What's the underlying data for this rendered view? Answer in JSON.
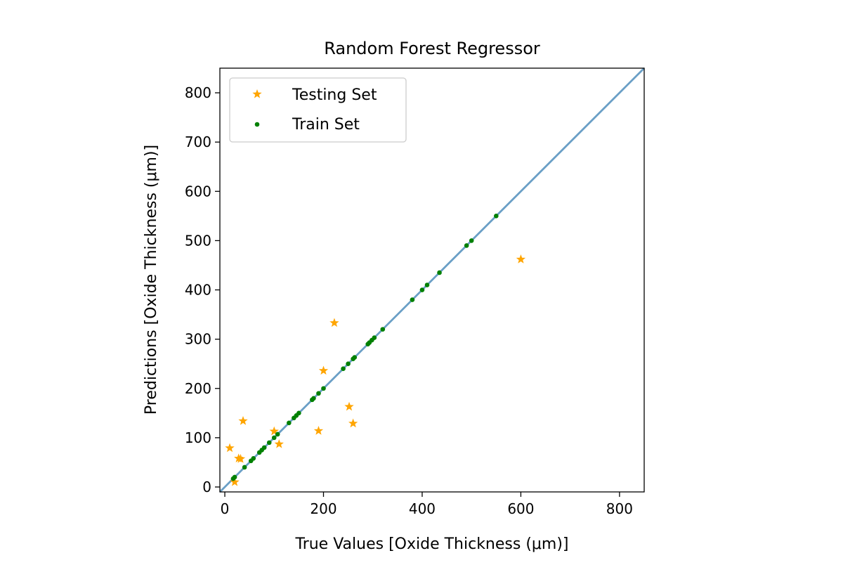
{
  "chart_data": {
    "type": "scatter",
    "title": "Random Forest Regressor",
    "xlabel": "True Values [Oxide Thickness (μm)]",
    "ylabel": "Predictions [Oxide Thickness (μm)]",
    "xlim": [
      -10,
      850
    ],
    "ylim": [
      -10,
      850
    ],
    "xticks": [
      0,
      200,
      400,
      600,
      800
    ],
    "yticks": [
      0,
      100,
      200,
      300,
      400,
      500,
      600,
      700,
      800
    ],
    "legend_position": "top-left",
    "identity_line": {
      "color": "#6a9fc6",
      "from": -10,
      "to": 850
    },
    "series": [
      {
        "name": "Testing Set",
        "marker": "star",
        "color": "#ffa500",
        "points": [
          [
            10,
            79
          ],
          [
            20,
            10
          ],
          [
            28,
            58
          ],
          [
            32,
            57
          ],
          [
            37,
            134
          ],
          [
            100,
            113
          ],
          [
            110,
            87
          ],
          [
            190,
            114
          ],
          [
            200,
            236
          ],
          [
            222,
            333
          ],
          [
            252,
            163
          ],
          [
            260,
            129
          ],
          [
            600,
            462
          ]
        ]
      },
      {
        "name": "Train Set",
        "marker": "dot",
        "color": "#008000",
        "points": [
          [
            17,
            17
          ],
          [
            20,
            20
          ],
          [
            40,
            40
          ],
          [
            53,
            53
          ],
          [
            58,
            58
          ],
          [
            70,
            70
          ],
          [
            75,
            75
          ],
          [
            80,
            80
          ],
          [
            90,
            90
          ],
          [
            100,
            100
          ],
          [
            107,
            107
          ],
          [
            130,
            130
          ],
          [
            140,
            140
          ],
          [
            145,
            145
          ],
          [
            150,
            150
          ],
          [
            177,
            177
          ],
          [
            180,
            180
          ],
          [
            190,
            190
          ],
          [
            200,
            200
          ],
          [
            240,
            240
          ],
          [
            250,
            250
          ],
          [
            260,
            260
          ],
          [
            263,
            263
          ],
          [
            290,
            290
          ],
          [
            293,
            293
          ],
          [
            298,
            298
          ],
          [
            303,
            303
          ],
          [
            320,
            320
          ],
          [
            380,
            380
          ],
          [
            400,
            400
          ],
          [
            410,
            410
          ],
          [
            435,
            435
          ],
          [
            490,
            490
          ],
          [
            500,
            500
          ],
          [
            550,
            550
          ]
        ]
      }
    ]
  }
}
